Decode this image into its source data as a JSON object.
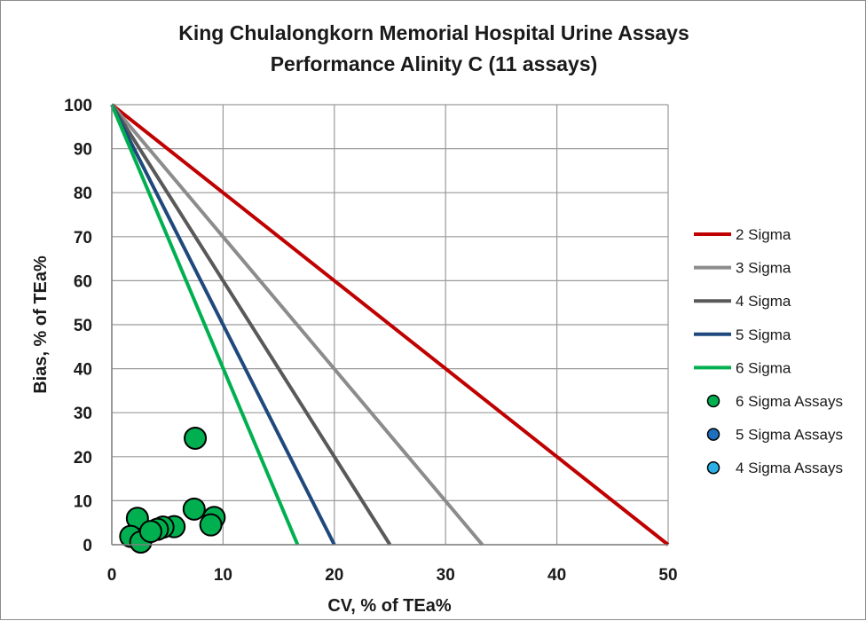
{
  "chart_data": {
    "type": "scatter",
    "title_line1": "King Chulalongkorn Memorial Hospital Urine Assays",
    "title_line2": "Performance Alinity C (11 assays)",
    "xlabel": "CV, % of TEa%",
    "ylabel": "Bias, % of TEa%",
    "xlim": [
      0,
      50
    ],
    "ylim": [
      0,
      100
    ],
    "x_ticks": [
      0,
      10,
      20,
      30,
      40,
      50
    ],
    "y_ticks": [
      0,
      10,
      20,
      30,
      40,
      50,
      60,
      70,
      80,
      90,
      100
    ],
    "grid": true,
    "legend_position": "right",
    "sigma_lines": [
      {
        "name": "2 Sigma",
        "x_intercept": 50,
        "color": "#c00000"
      },
      {
        "name": "3 Sigma",
        "x_intercept": 33.3,
        "color": "#8c8c8c"
      },
      {
        "name": "4 Sigma",
        "x_intercept": 25,
        "color": "#595959"
      },
      {
        "name": "5 Sigma",
        "x_intercept": 20,
        "color": "#1f497d"
      },
      {
        "name": "6 Sigma",
        "x_intercept": 16.7,
        "color": "#00b050"
      }
    ],
    "series": [
      {
        "name": "6 Sigma Assays",
        "color": "#00b050",
        "points": [
          {
            "x": 7.5,
            "y": 24.2
          },
          {
            "x": 7.4,
            "y": 8.1
          },
          {
            "x": 9.2,
            "y": 6.2
          },
          {
            "x": 8.9,
            "y": 4.5
          },
          {
            "x": 5.6,
            "y": 4.1
          },
          {
            "x": 4.6,
            "y": 4.0
          },
          {
            "x": 4.1,
            "y": 3.5
          },
          {
            "x": 2.3,
            "y": 6.0
          },
          {
            "x": 1.7,
            "y": 1.9
          },
          {
            "x": 2.6,
            "y": 0.6
          },
          {
            "x": 3.5,
            "y": 3.0
          }
        ]
      },
      {
        "name": "5 Sigma Assays",
        "color": "#1f6fbf",
        "points": []
      },
      {
        "name": "4 Sigma Assays",
        "color": "#2ab0e6",
        "points": []
      }
    ]
  }
}
